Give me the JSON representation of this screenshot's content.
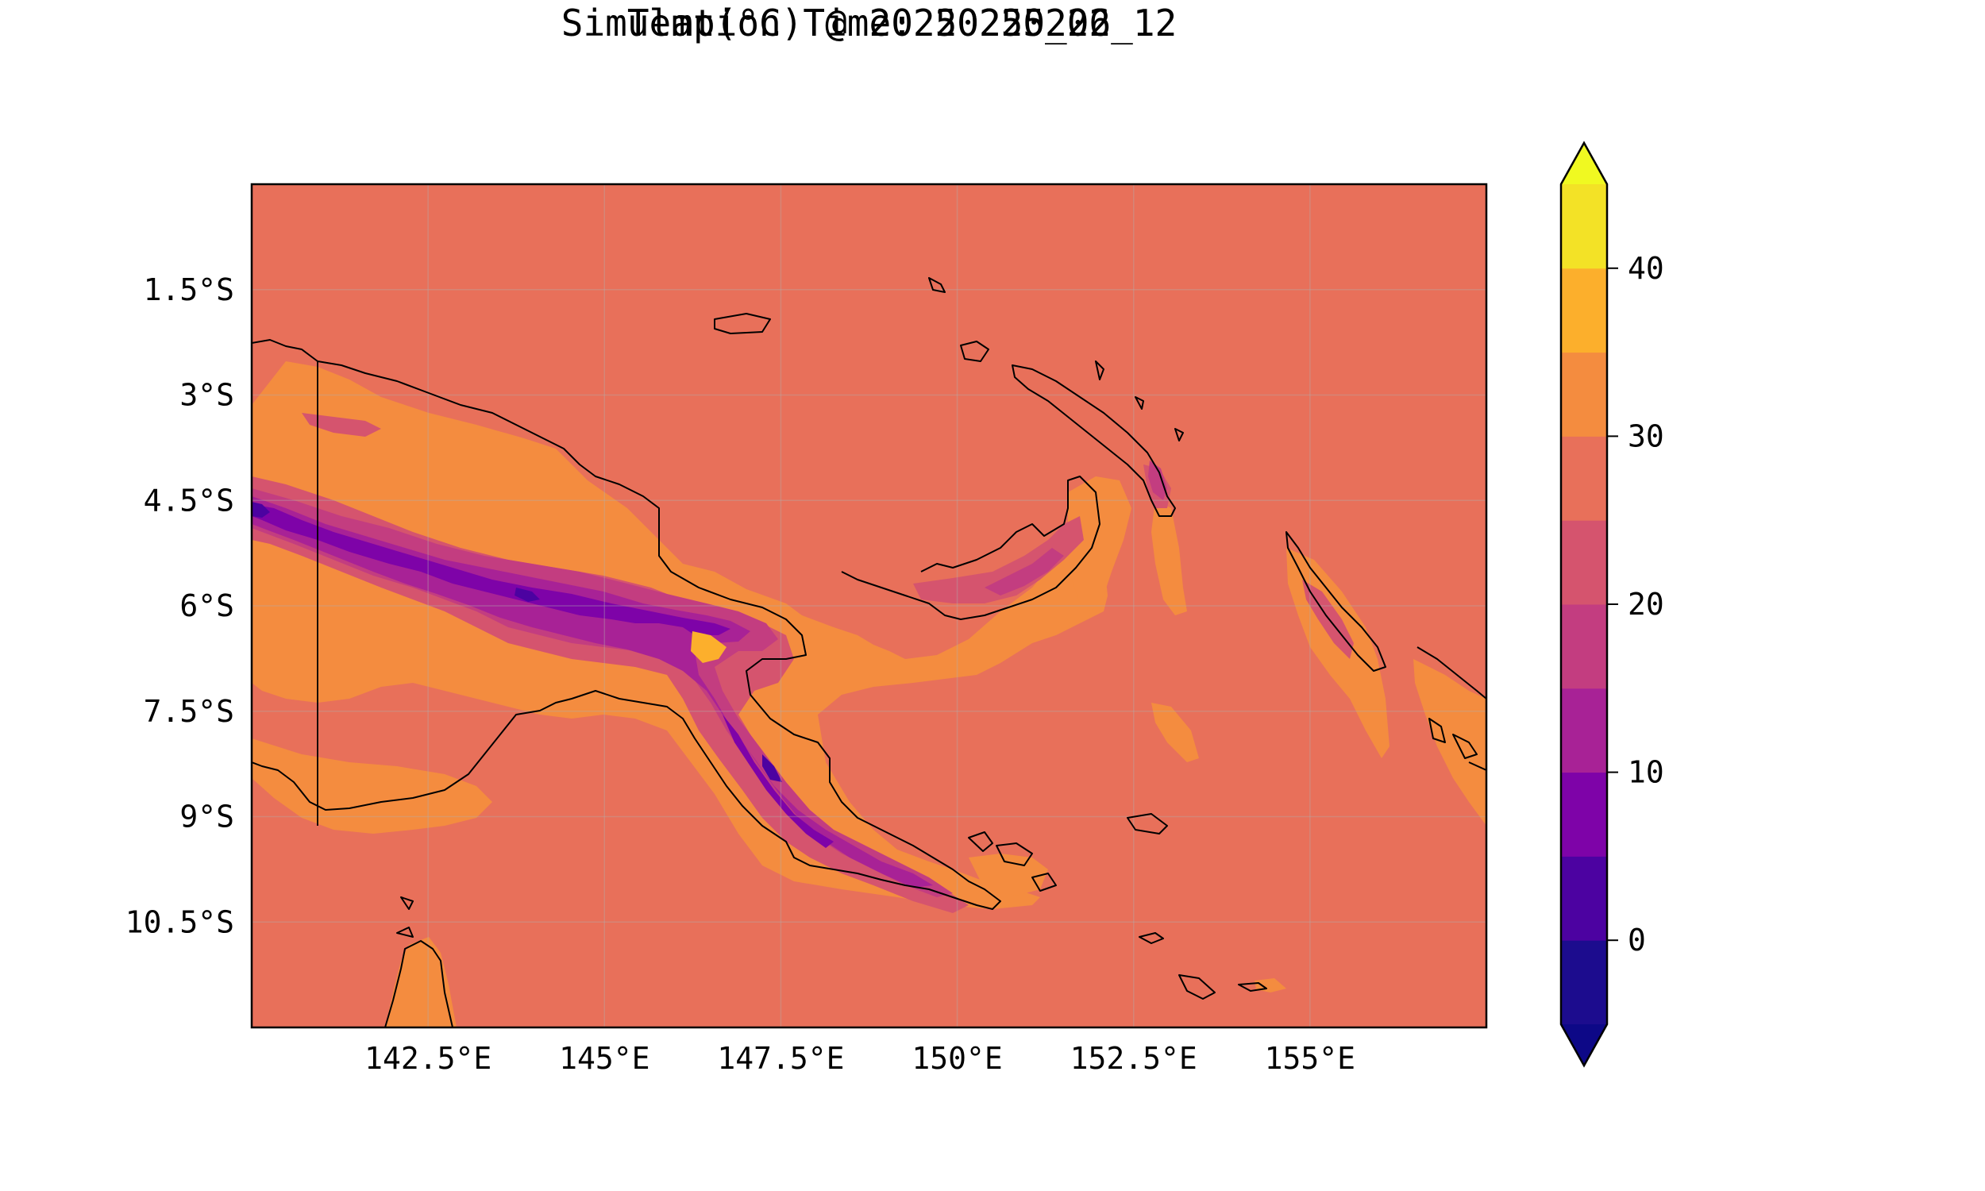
{
  "title": {
    "line1": "Temp(°C) @ 20250225_06",
    "line2": "Simulation Time: 20250222_12"
  },
  "map": {
    "variable": "Temperature",
    "units": "°C",
    "projection": "PlateCarree",
    "lon_range": [
      140.0,
      157.5
    ],
    "lat_range": [
      -12.0,
      0.0
    ],
    "x_ticks": [
      142.5,
      145.0,
      147.5,
      150.0,
      152.5,
      155.0
    ],
    "x_tick_labels": [
      "142.5°E",
      "145°E",
      "147.5°E",
      "150°E",
      "152.5°E",
      "155°E"
    ],
    "y_ticks": [
      -1.5,
      -3.0,
      -4.5,
      -6.0,
      -7.5,
      -9.0,
      -10.5
    ],
    "y_tick_labels": [
      "1.5°S",
      "3°S",
      "4.5°S",
      "6°S",
      "7.5°S",
      "9°S",
      "10.5°S"
    ],
    "gridlines": true,
    "coastlines": true,
    "colormap": "plasma"
  },
  "colorbar": {
    "orientation": "vertical",
    "placement": "right",
    "levels": [
      -5,
      0,
      5,
      10,
      15,
      20,
      25,
      30,
      35,
      40,
      45
    ],
    "extend": "both",
    "tick_values": [
      0,
      10,
      20,
      30,
      40
    ],
    "tick_labels": [
      "0",
      "10",
      "20",
      "30",
      "40"
    ],
    "colors": [
      "#1c0c8e",
      "#4c02a1",
      "#7e03a8",
      "#a82296",
      "#c33d80",
      "#d5546e",
      "#e8705a",
      "#f48c3f",
      "#fcaf2c",
      "#f3e226"
    ],
    "under_color": "#0d0887",
    "over_color": "#f0f921"
  }
}
